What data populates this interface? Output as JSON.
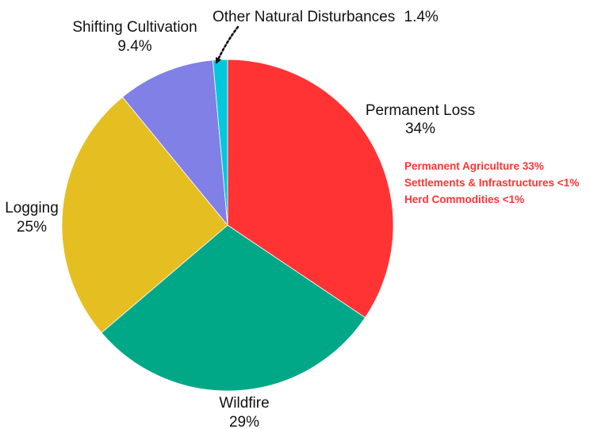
{
  "chart_data": {
    "type": "pie",
    "start_angle_deg": 0,
    "direction": "clockwise",
    "slices": [
      {
        "name": "Permanent Loss",
        "value": 34,
        "label": "34%",
        "color": "#ff3333",
        "sub_items": [
          "Permanent Agriculture 33%",
          "Settlements & Infrastructures <1%",
          "Herd Commodities <1%"
        ],
        "sub_items_color": "#ff3333"
      },
      {
        "name": "Wildfire",
        "value": 29,
        "label": "29%",
        "color": "#00a887"
      },
      {
        "name": "Logging",
        "value": 25,
        "label": "25%",
        "color": "#e5bf21"
      },
      {
        "name": "Shifting Cultivation",
        "value": 9.4,
        "label": "9.4%",
        "color": "#8080e6"
      },
      {
        "name": "Other Natural Disturbances",
        "value": 1.4,
        "label": "1.4%",
        "color": "#00c8dd"
      }
    ]
  }
}
